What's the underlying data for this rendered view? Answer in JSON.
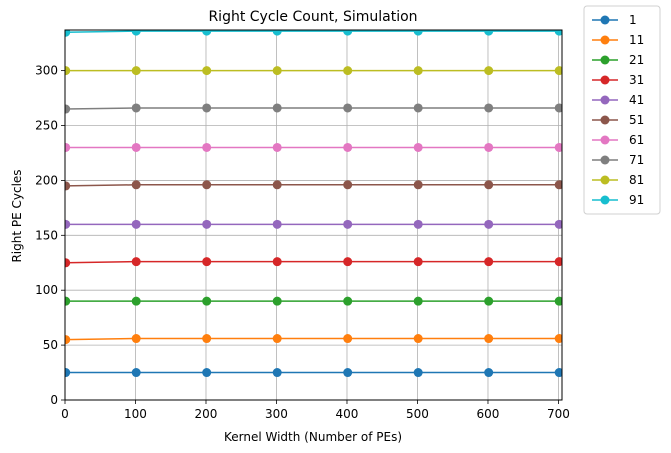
{
  "chart_data": {
    "type": "line",
    "title": "Right Cycle Count, Simulation",
    "xlabel": "Kernel Width (Number of PEs)",
    "ylabel": "Right PE Cycles",
    "xlim": [
      0,
      705
    ],
    "ylim": [
      0,
      337
    ],
    "xticks": [
      0,
      100,
      200,
      300,
      400,
      500,
      600,
      700
    ],
    "yticks": [
      0,
      50,
      100,
      150,
      200,
      250,
      300
    ],
    "grid": true,
    "legend_position": "outside-top-right",
    "x": [
      1,
      101,
      201,
      301,
      401,
      501,
      601,
      701
    ],
    "series": [
      {
        "name": "1",
        "color": "#1f77b4",
        "values": [
          25,
          25,
          25,
          25,
          25,
          25,
          25,
          25
        ]
      },
      {
        "name": "11",
        "color": "#ff7f0e",
        "values": [
          55,
          56,
          56,
          56,
          56,
          56,
          56,
          56
        ]
      },
      {
        "name": "21",
        "color": "#2ca02c",
        "values": [
          90,
          90,
          90,
          90,
          90,
          90,
          90,
          90
        ]
      },
      {
        "name": "31",
        "color": "#d62728",
        "values": [
          125,
          126,
          126,
          126,
          126,
          126,
          126,
          126
        ]
      },
      {
        "name": "41",
        "color": "#9467bd",
        "values": [
          160,
          160,
          160,
          160,
          160,
          160,
          160,
          160
        ]
      },
      {
        "name": "51",
        "color": "#8c564b",
        "values": [
          195,
          196,
          196,
          196,
          196,
          196,
          196,
          196
        ]
      },
      {
        "name": "61",
        "color": "#e377c2",
        "values": [
          230,
          230,
          230,
          230,
          230,
          230,
          230,
          230
        ]
      },
      {
        "name": "71",
        "color": "#7f7f7f",
        "values": [
          265,
          266,
          266,
          266,
          266,
          266,
          266,
          266
        ]
      },
      {
        "name": "81",
        "color": "#bcbd22",
        "values": [
          300,
          300,
          300,
          300,
          300,
          300,
          300,
          300
        ]
      },
      {
        "name": "91",
        "color": "#17becf",
        "values": [
          335,
          336,
          336,
          336,
          336,
          336,
          336,
          336
        ]
      }
    ]
  }
}
